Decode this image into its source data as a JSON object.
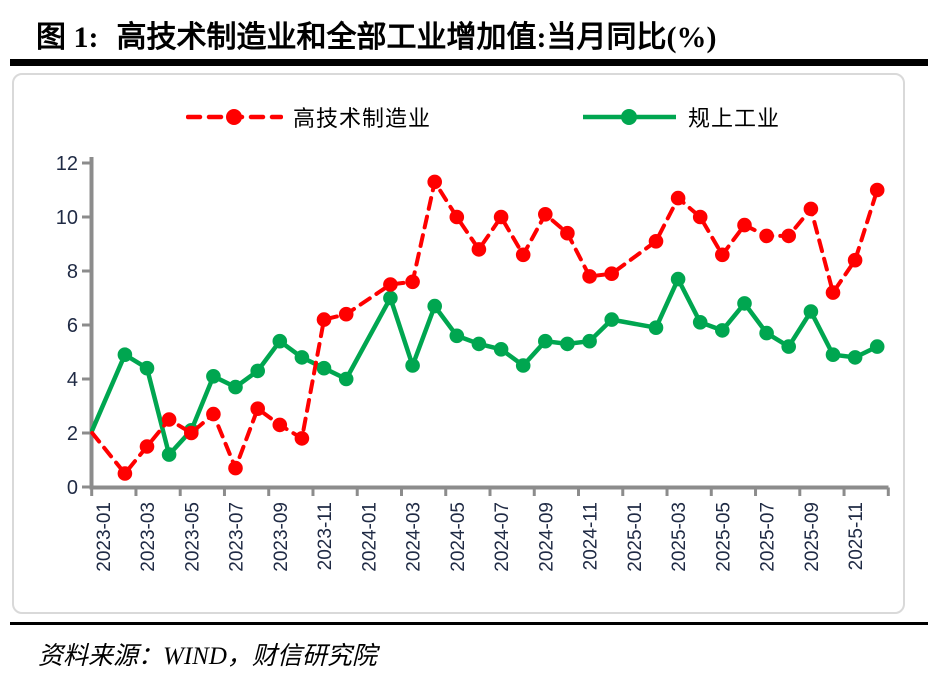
{
  "header": {
    "figure_label": "图 1:",
    "title": "高技术制造业和全部工业增加值:当月同比(%)"
  },
  "footer": {
    "source": "资料来源：WIND，财信研究院"
  },
  "colors": {
    "hightech": "#FF0000",
    "industry": "#00A650",
    "axis": "#8C8C8C",
    "tick_label": "#1F2A44",
    "panel_border": "#D9D9D9",
    "rule": "#000000"
  },
  "chart_data": {
    "type": "line",
    "title": "高技术制造业和全部工业增加值:当月同比(%)",
    "xlabel": "",
    "ylabel": "",
    "ylim": [
      0,
      12
    ],
    "y_ticks": [
      0,
      2,
      4,
      6,
      8,
      10,
      12
    ],
    "grid": false,
    "legend_position": "top",
    "x": [
      "2023-01",
      "2023-02",
      "2023-03",
      "2023-04",
      "2023-05",
      "2023-06",
      "2023-07",
      "2023-08",
      "2023-09",
      "2023-10",
      "2023-11",
      "2023-12",
      "2024-01",
      "2024-02",
      "2024-03",
      "2024-04",
      "2024-05",
      "2024-06",
      "2024-07",
      "2024-08",
      "2024-09",
      "2024-10",
      "2024-11",
      "2024-12",
      "2025-01",
      "2025-02",
      "2025-03",
      "2025-04",
      "2025-05",
      "2025-06",
      "2025-07",
      "2025-08",
      "2025-09",
      "2025-10",
      "2025-11",
      "2025-12"
    ],
    "x_tick_labels": [
      "2023-01",
      "2023-03",
      "2023-05",
      "2023-07",
      "2023-09",
      "2023-11",
      "2024-01",
      "2024-03",
      "2024-05",
      "2024-07",
      "2024-09",
      "2024-11",
      "2025-01",
      "2025-03",
      "2025-05",
      "2025-07",
      "2025-09",
      "2025-11"
    ],
    "no_marker_x": [
      "2023-01"
    ],
    "series": [
      {
        "name": "高技术制造业",
        "color": "#FF0000",
        "dash": true,
        "values": [
          2.0,
          0.5,
          1.5,
          2.5,
          2.0,
          2.7,
          0.7,
          2.9,
          2.3,
          1.8,
          6.2,
          6.4,
          null,
          7.5,
          7.6,
          11.3,
          10.0,
          8.8,
          10.0,
          8.6,
          10.1,
          9.4,
          7.8,
          7.9,
          null,
          9.1,
          10.7,
          10.0,
          8.6,
          9.7,
          9.3,
          9.3,
          10.3,
          7.2,
          8.4,
          11.0
        ]
      },
      {
        "name": "规上工业",
        "color": "#00A650",
        "dash": false,
        "values": [
          2.1,
          4.9,
          4.4,
          1.2,
          2.1,
          4.1,
          3.7,
          4.3,
          5.4,
          4.8,
          4.4,
          4.0,
          null,
          7.0,
          4.5,
          6.7,
          5.6,
          5.3,
          5.1,
          4.5,
          5.4,
          5.3,
          5.4,
          6.2,
          null,
          5.9,
          7.7,
          6.1,
          5.8,
          6.8,
          5.7,
          5.2,
          6.5,
          4.9,
          4.8,
          5.2
        ]
      }
    ]
  }
}
